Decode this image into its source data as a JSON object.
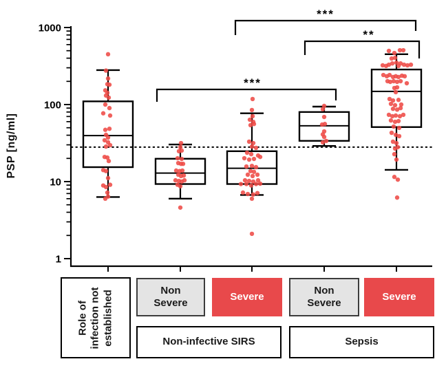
{
  "chart_data": {
    "type": "box-scatter",
    "title": "",
    "ylabel": "PSP  [ng/ml]",
    "yscale": "log",
    "ylim": [
      1,
      1000
    ],
    "grid": false,
    "yticks": [
      {
        "value": 1000,
        "label": "1000"
      },
      {
        "value": 100,
        "label": "100"
      },
      {
        "value": 10,
        "label": "10"
      },
      {
        "value": 1,
        "label": "1"
      }
    ],
    "cutoff_line": {
      "value": 28,
      "style": "dotted"
    },
    "point_color": "#ee4b47",
    "box_fill": "#ffffff",
    "line_color": "#000000",
    "groups": [
      {
        "id": "infection-not-established",
        "label": "Role of infection not established",
        "box": {
          "whisker_low": 6.3,
          "q1": 15.4,
          "median": 39.5,
          "q3": 110,
          "whisker_high": 280
        },
        "points": [
          [
            0,
            450
          ],
          [
            -3,
            276
          ],
          [
            0,
            218
          ],
          [
            -1,
            184
          ],
          [
            2,
            181
          ],
          [
            -4,
            153
          ],
          [
            -1,
            142
          ],
          [
            -3,
            131
          ],
          [
            1,
            123
          ],
          [
            -4,
            100
          ],
          [
            2,
            90
          ],
          [
            -7,
            77
          ],
          [
            3,
            72
          ],
          [
            2,
            48.5
          ],
          [
            -4,
            47
          ],
          [
            -3,
            40.5
          ],
          [
            0,
            37.3
          ],
          [
            -5,
            34.4
          ],
          [
            0,
            32.4
          ],
          [
            3,
            29.7
          ],
          [
            -3,
            28.5
          ],
          [
            -5,
            20.9
          ],
          [
            -1,
            20.5
          ],
          [
            1,
            18.5
          ],
          [
            -7,
            14.1
          ],
          [
            -3,
            13.7
          ],
          [
            0,
            11.1
          ],
          [
            3,
            9.1
          ],
          [
            -7,
            8.9
          ],
          [
            -3,
            8.5
          ],
          [
            -1,
            7.2
          ],
          [
            0,
            6.4
          ],
          [
            -4,
            6.0
          ]
        ]
      },
      {
        "id": "nonsevere-sirs",
        "label": "Non Severe",
        "box": {
          "whisker_low": 6.0,
          "q1": 9.3,
          "median": 12.9,
          "q3": 19.8,
          "whisker_high": 30.3
        },
        "points": [
          [
            1,
            31.6
          ],
          [
            0,
            28
          ],
          [
            -2,
            24.8
          ],
          [
            2,
            25.3
          ],
          [
            -4,
            20.1
          ],
          [
            2,
            19.7
          ],
          [
            -3,
            17.4
          ],
          [
            1,
            17
          ],
          [
            4,
            17
          ],
          [
            -6,
            13.9
          ],
          [
            -1,
            13.7
          ],
          [
            3,
            13.9
          ],
          [
            -3,
            12.3
          ],
          [
            1,
            11.8
          ],
          [
            5,
            12
          ],
          [
            -7,
            10.4
          ],
          [
            -2,
            10.2
          ],
          [
            2,
            10
          ],
          [
            6,
            10.4
          ],
          [
            -4,
            9.1
          ],
          [
            0,
            8.7
          ],
          [
            0,
            4.6
          ]
        ]
      },
      {
        "id": "severe-sirs",
        "label": "Severe",
        "box": {
          "whisker_low": 6.7,
          "q1": 9.3,
          "median": 14.9,
          "q3": 24.8,
          "whisker_high": 77
        },
        "points": [
          [
            1,
            118
          ],
          [
            0,
            85
          ],
          [
            1,
            70.6
          ],
          [
            -3,
            63.6
          ],
          [
            2,
            59.7
          ],
          [
            3,
            56
          ],
          [
            -2,
            54
          ],
          [
            -4,
            33
          ],
          [
            2,
            31.6
          ],
          [
            0,
            28.5
          ],
          [
            6,
            27.4
          ],
          [
            -7,
            23.7
          ],
          [
            -1,
            22.7
          ],
          [
            9,
            21.8
          ],
          [
            -11,
            20.1
          ],
          [
            -4,
            19.3
          ],
          [
            3,
            19.7
          ],
          [
            12,
            20.9
          ],
          [
            -8,
            15.7
          ],
          [
            0,
            16
          ],
          [
            6,
            15.4
          ],
          [
            -2,
            13.7
          ],
          [
            3,
            13.4
          ],
          [
            -6,
            12.3
          ],
          [
            1,
            11.8
          ],
          [
            8,
            12.3
          ],
          [
            -10,
            10.4
          ],
          [
            -4,
            10.2
          ],
          [
            2,
            10
          ],
          [
            9,
            10.4
          ],
          [
            -16,
            9.3
          ],
          [
            -8,
            9.3
          ],
          [
            -1,
            8.9
          ],
          [
            6,
            9.3
          ],
          [
            12,
            9.4
          ],
          [
            -13,
            7.2
          ],
          [
            -6,
            6.9
          ],
          [
            2,
            6.8
          ],
          [
            8,
            7.1
          ],
          [
            0,
            6
          ],
          [
            0,
            2.1
          ]
        ]
      },
      {
        "id": "nonsevere-sepsis",
        "label": "Non Severe",
        "box": {
          "whisker_low": 29,
          "q1": 33.8,
          "median": 53,
          "q3": 80,
          "whisker_high": 94
        },
        "points": [
          [
            0,
            96
          ],
          [
            -2,
            87
          ],
          [
            0,
            69
          ],
          [
            1,
            56
          ],
          [
            -3,
            55
          ],
          [
            0,
            44.8
          ],
          [
            -2,
            41
          ],
          [
            0,
            38
          ],
          [
            3,
            33.7
          ],
          [
            -2,
            32.3
          ]
        ]
      },
      {
        "id": "severe-sepsis",
        "label": "Severe",
        "box": {
          "whisker_low": 14.2,
          "q1": 51,
          "median": 148,
          "q3": 285,
          "whisker_high": 450
        },
        "points": [
          [
            -11,
            497
          ],
          [
            5,
            507
          ],
          [
            10,
            507
          ],
          [
            -3,
            467
          ],
          [
            -7,
            396
          ],
          [
            -2,
            404
          ],
          [
            -6,
            342
          ],
          [
            0,
            350
          ],
          [
            6,
            342
          ],
          [
            -20,
            323
          ],
          [
            -15,
            317
          ],
          [
            -11,
            329
          ],
          [
            11,
            329
          ],
          [
            16,
            323
          ],
          [
            21,
            329
          ],
          [
            3,
            317
          ],
          [
            -19,
            242
          ],
          [
            -14,
            233
          ],
          [
            -10,
            242
          ],
          [
            -5,
            228
          ],
          [
            -1,
            233
          ],
          [
            3,
            228
          ],
          [
            8,
            237
          ],
          [
            12,
            233
          ],
          [
            -13,
            201
          ],
          [
            -9,
            197
          ],
          [
            -4,
            201
          ],
          [
            1,
            197
          ],
          [
            6,
            201
          ],
          [
            15,
            189
          ],
          [
            -3,
            164
          ],
          [
            1,
            167
          ],
          [
            -1,
            145
          ],
          [
            -10,
            118
          ],
          [
            -5,
            113
          ],
          [
            3,
            115
          ],
          [
            -8,
            102
          ],
          [
            -2,
            98
          ],
          [
            7,
            100
          ],
          [
            -5,
            88
          ],
          [
            1,
            86
          ],
          [
            6,
            90
          ],
          [
            -11,
            73.6
          ],
          [
            -6,
            70.6
          ],
          [
            -1,
            72
          ],
          [
            5,
            70.6
          ],
          [
            10,
            73.6
          ],
          [
            -8,
            62.2
          ],
          [
            -2,
            59.7
          ],
          [
            3,
            61
          ],
          [
            -4,
            51.8
          ],
          [
            4,
            49.8
          ],
          [
            -7,
            43
          ],
          [
            -1,
            40.5
          ],
          [
            4,
            38.9
          ],
          [
            -5,
            33
          ],
          [
            0,
            31.6
          ],
          [
            2,
            28
          ],
          [
            -2,
            26.8
          ],
          [
            -3,
            22.7
          ],
          [
            0,
            19.3
          ],
          [
            -3,
            11.5
          ],
          [
            2,
            10.6
          ],
          [
            1,
            6.2
          ]
        ]
      }
    ],
    "significance": [
      {
        "label": "***",
        "compares": [
          "severe-sirs",
          "severe-sepsis"
        ],
        "x1": 342,
        "x2": 604,
        "y": 30,
        "drop1": 21,
        "drop2": 15,
        "label_x": 473
      },
      {
        "label": "**",
        "compares": [
          "nonsevere-sepsis",
          "severe-sepsis"
        ],
        "x1": 443,
        "x2": 609,
        "y": 60,
        "drop1": 20,
        "drop2": 25,
        "label_x": 536
      },
      {
        "label": "***",
        "compares": [
          "nonsevere-sirs",
          "nonsevere-sepsis"
        ],
        "x1": 228,
        "x2": 488,
        "y": 130,
        "drop1": 18,
        "drop2": 16,
        "label_x": 367
      }
    ]
  },
  "category_labels": {
    "row1": [
      {
        "text": "Role of\ninfection not\nestablished",
        "style": "white"
      },
      {
        "text": "Non\nSevere",
        "style": "gray"
      },
      {
        "text": "Severe",
        "style": "red"
      },
      {
        "text": "Non\nSevere",
        "style": "gray"
      },
      {
        "text": "Severe",
        "style": "red"
      }
    ],
    "row2": [
      {
        "text": "Non-infective SIRS"
      },
      {
        "text": "Sepsis"
      }
    ]
  },
  "colors": {
    "severe_red": "#e8494b",
    "nonsevere_gray": "#e4e4e4",
    "dot_red": "#ee4b47",
    "line_black": "#000000"
  }
}
